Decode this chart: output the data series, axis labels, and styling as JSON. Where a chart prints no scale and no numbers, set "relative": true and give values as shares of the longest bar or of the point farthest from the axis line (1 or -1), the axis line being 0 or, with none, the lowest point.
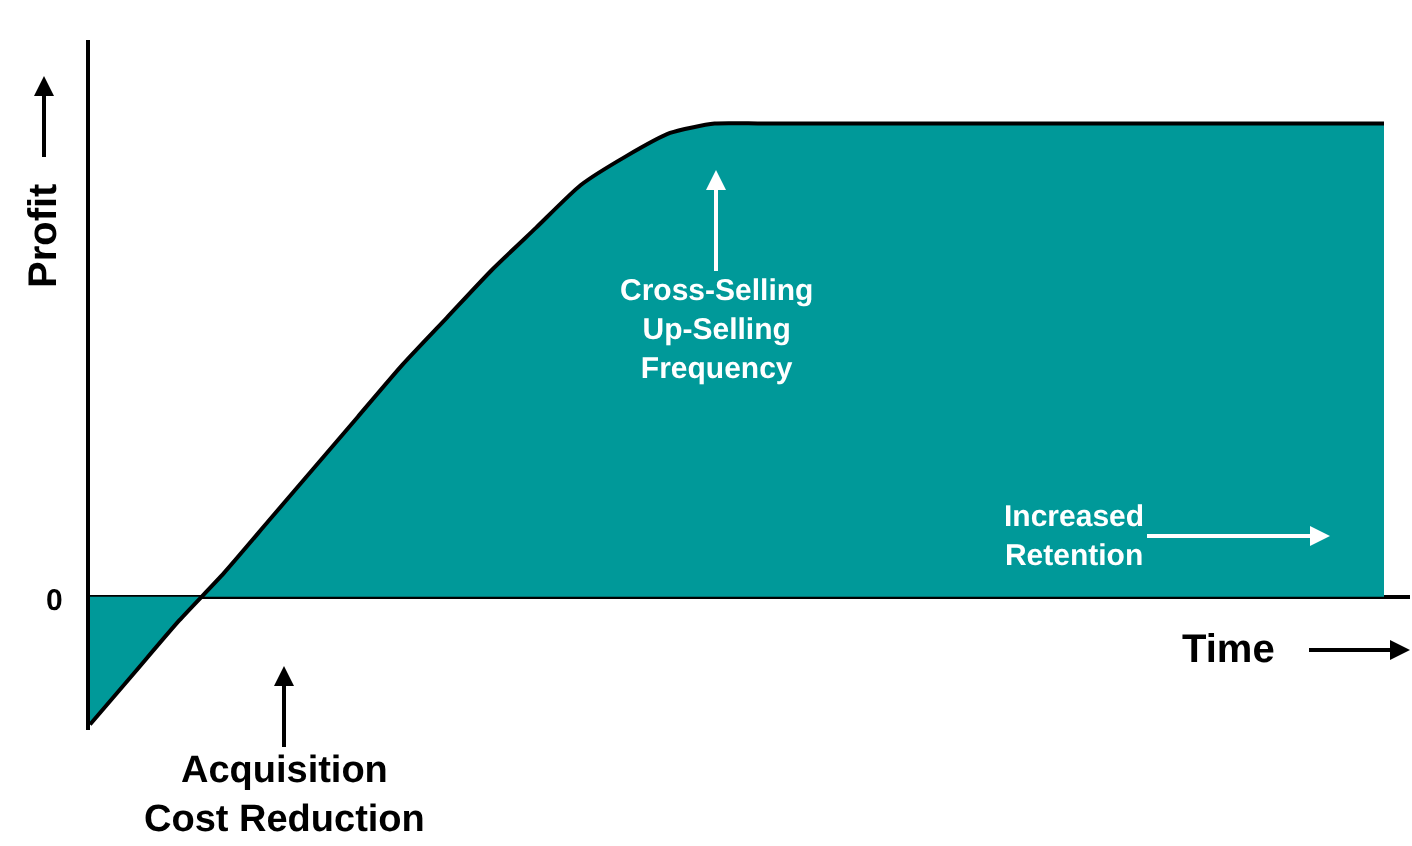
{
  "chart_data": {
    "type": "area",
    "relative": true,
    "xlabel": "Time",
    "ylabel": "Profit",
    "categories": [
      null,
      null,
      null,
      null,
      null,
      null,
      null,
      null,
      null,
      null,
      null,
      null,
      null,
      null,
      null,
      null,
      null,
      null,
      null,
      null,
      null,
      null,
      null,
      null,
      null,
      null,
      null,
      null,
      null,
      null
    ],
    "series": [
      {
        "color": "#009999",
        "values": [
          -0.27,
          -0.16,
          -0.05,
          0.05,
          0.16,
          0.27,
          0.38,
          0.49,
          0.59,
          0.69,
          0.78,
          0.87,
          0.93,
          0.98,
          1,
          1,
          1,
          1,
          1,
          1,
          1,
          1,
          1,
          1,
          1,
          1,
          1,
          1,
          1,
          1
        ]
      }
    ],
    "annotations": [
      "Cross-Selling\nUp-Selling\nFrequency",
      "Increased\nRetention",
      "Acquisition\nCost Reduction",
      "0"
    ],
    "line_style": "solid"
  }
}
